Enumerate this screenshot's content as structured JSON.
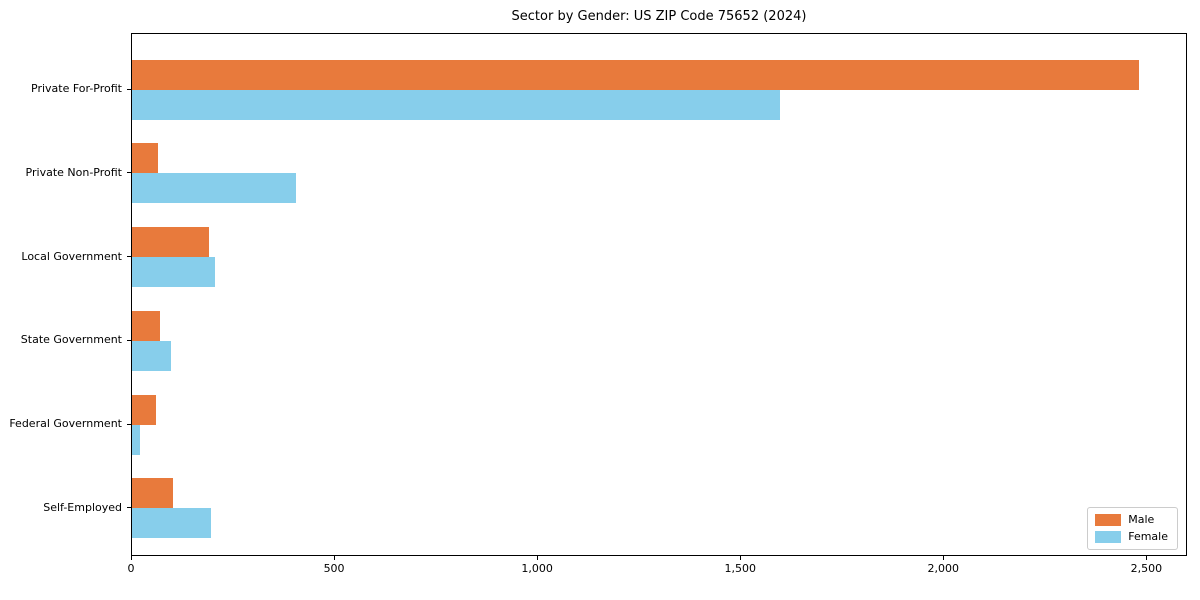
{
  "title": "Sector by Gender: US ZIP Code 75652 (2024)",
  "colors": {
    "male": "#e87a3c",
    "female": "#87ceeb",
    "axis": "#000000",
    "legend_border": "#cccccc",
    "background": "#ffffff"
  },
  "legend": {
    "position": "lower right",
    "items": [
      {
        "label": "Male",
        "color": "#e87a3c"
      },
      {
        "label": "Female",
        "color": "#87ceeb"
      }
    ]
  },
  "chart_data": {
    "type": "bar",
    "orientation": "horizontal",
    "title": "Sector by Gender: US ZIP Code 75652 (2024)",
    "categories": [
      "Private For-Profit",
      "Private Non-Profit",
      "Local Government",
      "State Government",
      "Federal Government",
      "Self-Employed"
    ],
    "series": [
      {
        "name": "Male",
        "color": "#e87a3c",
        "values": [
          2480,
          65,
          190,
          70,
          60,
          100
        ]
      },
      {
        "name": "Female",
        "color": "#87ceeb",
        "values": [
          1595,
          405,
          205,
          95,
          20,
          195
        ]
      }
    ],
    "xlabel": "",
    "ylabel": "",
    "xlim": [
      0,
      2600
    ],
    "x_ticks": [
      0,
      500,
      1000,
      1500,
      2000,
      2500
    ],
    "x_tick_labels": [
      "0",
      "500",
      "1,000",
      "1,500",
      "2,000",
      "2,500"
    ],
    "grid": false,
    "legend_position": "lower right"
  }
}
